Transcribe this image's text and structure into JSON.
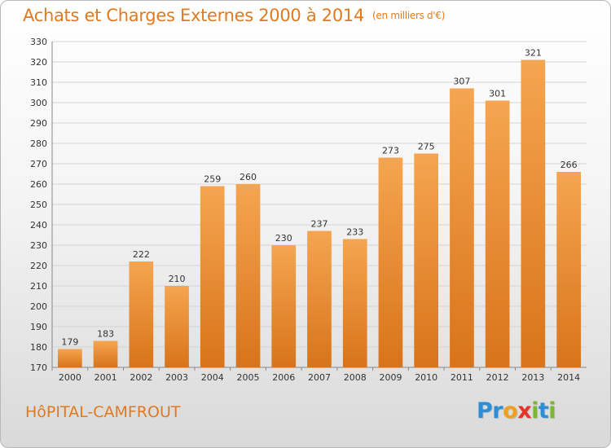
{
  "header": {
    "title": "Achats et Charges Externes 2000 à 2014",
    "unit": "(en milliers d'€)"
  },
  "footer": {
    "town": "HôPITAL-CAMFROUT",
    "logo": {
      "text": "Proxiti",
      "letters": [
        {
          "ch": "P",
          "color": "#2a8fd6"
        },
        {
          "ch": "r",
          "color": "#2a8fd6"
        },
        {
          "ch": "o",
          "color": "#f0a020"
        },
        {
          "ch": "x",
          "color": "#e8332a"
        },
        {
          "ch": "i",
          "color": "#7ab82e"
        },
        {
          "ch": "t",
          "color": "#2a8fd6"
        },
        {
          "ch": "i",
          "color": "#7ab82e"
        }
      ]
    }
  },
  "colors": {
    "accent": "#e07a1f",
    "bar_top": "#f5a550",
    "bar_bottom": "#d8741a",
    "grid": "#d4d4d4"
  },
  "chart_data": {
    "type": "bar",
    "title": "Achats et Charges Externes 2000 à 2014",
    "xlabel": "",
    "ylabel": "",
    "categories": [
      "2000",
      "2001",
      "2002",
      "2003",
      "2004",
      "2005",
      "2006",
      "2007",
      "2008",
      "2009",
      "2010",
      "2011",
      "2012",
      "2013",
      "2014"
    ],
    "values": [
      179,
      183,
      222,
      210,
      259,
      260,
      230,
      237,
      233,
      273,
      275,
      307,
      301,
      321,
      266
    ],
    "ylim": [
      170,
      330
    ],
    "ytick_step": 10,
    "grid": true,
    "data_labels": true
  }
}
